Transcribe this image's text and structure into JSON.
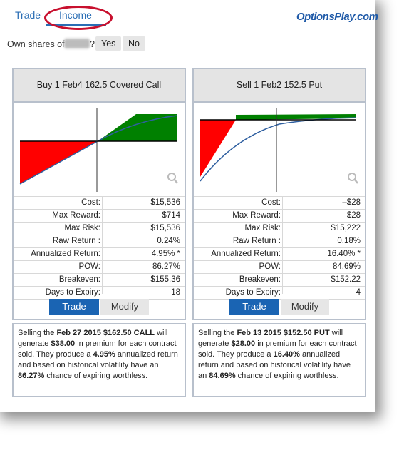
{
  "header": {
    "tabs": [
      {
        "label": "Trade"
      },
      {
        "label": "Income"
      }
    ],
    "logo": "OptionsPlay.com"
  },
  "own_shares": {
    "label": "Own shares of",
    "question_mark": "?",
    "yes_label": "Yes",
    "no_label": "No"
  },
  "cards": [
    {
      "title": "Buy 1 Feb4 162.5 Covered Call",
      "stats": [
        {
          "label": "Cost:",
          "value": "$15,536"
        },
        {
          "label": "Max Reward:",
          "value": "$714"
        },
        {
          "label": "Max Risk:",
          "value": "$15,536"
        },
        {
          "label": "Raw Return :",
          "value": "0.24%"
        },
        {
          "label": "Annualized Return:",
          "value": "4.95% *"
        },
        {
          "label": "POW:",
          "value": "86.27%"
        },
        {
          "label": "Breakeven:",
          "value": "$155.36"
        },
        {
          "label": "Days to Expiry:",
          "value": "18"
        }
      ],
      "trade_label": "Trade",
      "modify_label": "Modify",
      "description": {
        "p1": "Selling the ",
        "b1": "Feb 27 2015 $162.50 CALL",
        "p2": " will generate ",
        "b2": "$38.00",
        "p3": " in premium for each contract sold. They produce a ",
        "b3": "4.95%",
        "p4": " annualized return and based on historical volatility have an ",
        "b4": "86.27%",
        "p5": " chance of expiring worthless."
      }
    },
    {
      "title": "Sell 1 Feb2 152.5 Put",
      "stats": [
        {
          "label": "Cost:",
          "value": "–$28"
        },
        {
          "label": "Max Reward:",
          "value": "$28"
        },
        {
          "label": "Max Risk:",
          "value": "$15,222"
        },
        {
          "label": "Raw Return :",
          "value": "0.18%"
        },
        {
          "label": "Annualized Return:",
          "value": "16.40% *"
        },
        {
          "label": "POW:",
          "value": "84.69%"
        },
        {
          "label": "Breakeven:",
          "value": "$152.22"
        },
        {
          "label": "Days to Expiry:",
          "value": "4"
        }
      ],
      "trade_label": "Trade",
      "modify_label": "Modify",
      "description": {
        "p1": "Selling the ",
        "b1": "Feb 13 2015 $152.50 PUT",
        "p2": " will generate ",
        "b2": "$28.00",
        "p3": " in premium for each contract sold. They produce a ",
        "b3": "16.40%",
        "p4": " annualized return and based on historical volatility have an ",
        "b4": "84.69%",
        "p5": " chance of expiring worthless."
      }
    }
  ],
  "colors": {
    "profit": "#008000",
    "loss": "#ff0000",
    "curve": "#2f5fa0",
    "accent": "#1a64b3",
    "highlight": "#c8102e"
  }
}
